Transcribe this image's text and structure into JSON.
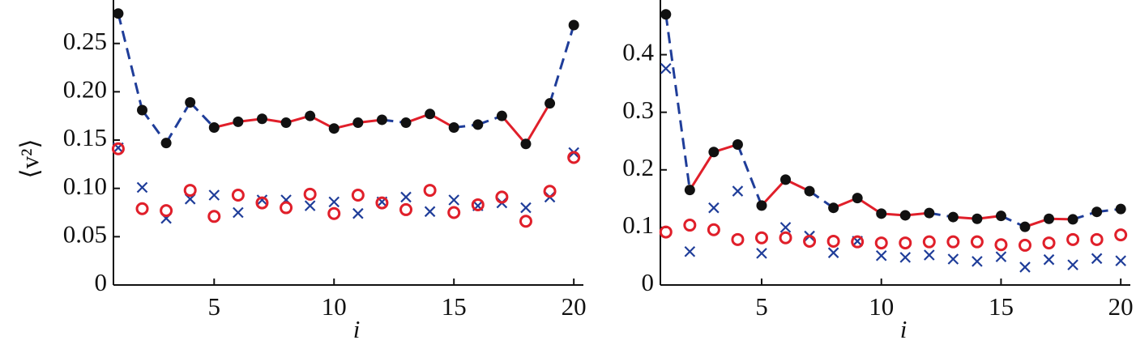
{
  "chart_data": [
    {
      "type": "line",
      "ylabel": "⟨v²⟩",
      "xlabel": "i",
      "x": [
        1,
        2,
        3,
        4,
        5,
        6,
        7,
        8,
        9,
        10,
        11,
        12,
        13,
        14,
        15,
        16,
        17,
        18,
        19,
        20
      ],
      "xlim": [
        0.8,
        20.4
      ],
      "ylim": [
        0,
        0.295
      ],
      "xticks": [
        5,
        10,
        15,
        20
      ],
      "yticks": [
        0,
        0.05,
        {
          "value": 0.1,
          "label": "0.10"
        },
        0.15,
        {
          "value": 0.2,
          "label": "0.20"
        },
        0.25
      ],
      "dashed_color": "#1f3d99",
      "solid_color": "#e01f2a",
      "series": [
        {
          "marker": "dot",
          "color": "#111111",
          "values": [
            0.281,
            0.181,
            0.147,
            0.189,
            0.163,
            0.169,
            0.172,
            0.168,
            0.175,
            0.162,
            0.168,
            0.171,
            0.168,
            0.177,
            0.163,
            0.166,
            0.175,
            0.146,
            0.188,
            0.269
          ],
          "line_segments": [
            "dashed",
            "dashed",
            "dashed",
            "dashed",
            "solid",
            "solid",
            "solid",
            "solid",
            "solid",
            "solid",
            "solid",
            "dashed",
            "solid",
            "solid",
            "dashed",
            "dashed",
            "solid",
            "solid",
            "dashed"
          ]
        },
        {
          "marker": "cross",
          "color": "#1f3d99",
          "values": [
            0.142,
            0.101,
            0.069,
            0.089,
            0.093,
            0.075,
            0.088,
            0.088,
            0.082,
            0.086,
            0.074,
            0.086,
            0.091,
            0.076,
            0.088,
            0.082,
            0.085,
            0.08,
            0.091,
            0.137
          ]
        },
        {
          "marker": "circle",
          "color": "#e01f2a",
          "values": [
            0.141,
            0.079,
            0.077,
            0.098,
            0.071,
            0.093,
            0.085,
            0.08,
            0.094,
            0.074,
            0.093,
            0.085,
            0.078,
            0.098,
            0.075,
            0.083,
            0.091,
            0.066,
            0.097,
            0.132
          ]
        }
      ]
    },
    {
      "type": "line",
      "xlabel": "i",
      "x": [
        1,
        2,
        3,
        4,
        5,
        6,
        7,
        8,
        9,
        10,
        11,
        12,
        13,
        14,
        15,
        16,
        17,
        18,
        19,
        20
      ],
      "xlim": [
        0.77,
        20.4
      ],
      "ylim": [
        0,
        0.495
      ],
      "xticks": [
        5,
        10,
        15,
        20
      ],
      "yticks": [
        0,
        0.1,
        0.2,
        0.3,
        0.4
      ],
      "dashed_color": "#1f3d99",
      "solid_color": "#e01f2a",
      "series": [
        {
          "marker": "dot",
          "color": "#111111",
          "values": [
            0.47,
            0.165,
            0.231,
            0.244,
            0.138,
            0.183,
            0.163,
            0.134,
            0.151,
            0.124,
            0.121,
            0.125,
            0.118,
            0.115,
            0.12,
            0.101,
            0.115,
            0.114,
            0.127,
            0.132
          ],
          "line_segments": [
            "dashed",
            "solid",
            "solid",
            "dashed",
            "solid",
            "solid",
            "dashed",
            "solid",
            "solid",
            "solid",
            "solid",
            "dashed",
            "solid",
            "solid",
            "dashed",
            "solid",
            "solid",
            "dashed",
            "dashed"
          ]
        },
        {
          "marker": "cross",
          "color": "#1f3d99",
          "values": [
            0.376,
            0.058,
            0.134,
            0.163,
            0.055,
            0.1,
            0.085,
            0.056,
            0.076,
            0.051,
            0.048,
            0.052,
            0.045,
            0.041,
            0.049,
            0.031,
            0.044,
            0.035,
            0.046,
            0.042
          ]
        },
        {
          "marker": "circle",
          "color": "#e01f2a",
          "values": [
            0.092,
            0.104,
            0.096,
            0.079,
            0.082,
            0.082,
            0.076,
            0.076,
            0.075,
            0.073,
            0.073,
            0.075,
            0.075,
            0.075,
            0.07,
            0.069,
            0.073,
            0.079,
            0.079,
            0.087
          ]
        }
      ]
    }
  ]
}
